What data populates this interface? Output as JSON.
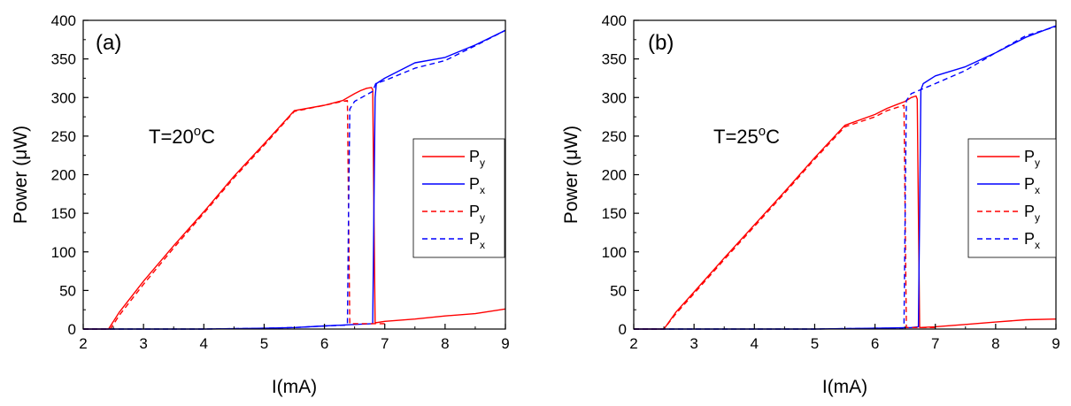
{
  "chart_data": [
    {
      "type": "line",
      "panel_label": "(a)",
      "annotation": {
        "text": "T=20",
        "sup": "o",
        "unit": "C"
      },
      "xlabel": "I(mA)",
      "ylabel": "Power (μW)",
      "xlim": [
        2,
        9
      ],
      "ylim": [
        0,
        400
      ],
      "xticks": [
        "2",
        "3",
        "4",
        "5",
        "6",
        "7",
        "8",
        "9"
      ],
      "yticks": [
        "0",
        "50",
        "100",
        "150",
        "200",
        "250",
        "300",
        "350",
        "400"
      ],
      "legend_position": "right-center",
      "series": [
        {
          "name": "P",
          "sub": "y",
          "color": "#ff0000",
          "style": "solid",
          "x": [
            2.0,
            2.42,
            2.6,
            3.0,
            3.5,
            4.0,
            4.5,
            5.0,
            5.5,
            6.0,
            6.3,
            6.5,
            6.6,
            6.7,
            6.78,
            6.8,
            6.82,
            6.84,
            7.0,
            7.5,
            8.0,
            8.5,
            9.0
          ],
          "y": [
            0,
            0,
            22,
            62,
            108,
            152,
            198,
            240,
            283,
            290,
            296,
            305,
            309,
            312,
            313,
            310,
            160,
            8,
            10,
            13,
            17,
            20,
            26
          ]
        },
        {
          "name": "P",
          "sub": "x",
          "color": "#0000ff",
          "style": "solid",
          "x": [
            2.0,
            4.0,
            5.0,
            5.5,
            6.0,
            6.5,
            6.8,
            6.82,
            6.84,
            6.86,
            7.0,
            7.5,
            8.0,
            8.5,
            9.0
          ],
          "y": [
            0,
            0,
            1,
            2,
            4,
            6,
            7,
            150,
            300,
            318,
            325,
            345,
            352,
            368,
            387
          ]
        },
        {
          "name": "P",
          "sub": "y",
          "color": "#ff0000",
          "style": "dashed",
          "x": [
            2.0,
            2.45,
            2.6,
            3.0,
            3.5,
            4.0,
            4.5,
            5.0,
            5.5,
            6.0,
            6.3,
            6.38,
            6.4,
            6.42,
            6.5,
            7.0
          ],
          "y": [
            0,
            0,
            18,
            58,
            105,
            150,
            196,
            238,
            282,
            290,
            295,
            296,
            150,
            7,
            7,
            7
          ]
        },
        {
          "name": "P",
          "sub": "x",
          "color": "#0000ff",
          "style": "dashed",
          "x": [
            2.0,
            4.0,
            5.0,
            5.5,
            6.0,
            6.35,
            6.38,
            6.4,
            6.42,
            6.5,
            6.8,
            6.85,
            7.0,
            7.5,
            8.0,
            8.5,
            9.0
          ],
          "y": [
            0,
            0,
            1,
            2,
            4,
            5,
            6,
            150,
            285,
            295,
            308,
            318,
            322,
            338,
            348,
            367,
            387
          ]
        }
      ]
    },
    {
      "type": "line",
      "panel_label": "(b)",
      "annotation": {
        "text": "T=25",
        "sup": "o",
        "unit": "C"
      },
      "xlabel": "I(mA)",
      "ylabel": "Power (μW)",
      "xlim": [
        2,
        9
      ],
      "ylim": [
        0,
        400
      ],
      "xticks": [
        "2",
        "3",
        "4",
        "5",
        "6",
        "7",
        "8",
        "9"
      ],
      "yticks": [
        "0",
        "50",
        "100",
        "150",
        "200",
        "250",
        "300",
        "350",
        "400"
      ],
      "legend_position": "right-center",
      "series": [
        {
          "name": "P",
          "sub": "y",
          "color": "#ff0000",
          "style": "solid",
          "x": [
            2.0,
            2.5,
            2.7,
            3.0,
            3.5,
            4.0,
            4.5,
            5.0,
            5.5,
            6.0,
            6.2,
            6.4,
            6.5,
            6.6,
            6.68,
            6.7,
            6.72,
            6.74,
            7.0,
            7.5,
            8.0,
            8.5,
            9.0
          ],
          "y": [
            0,
            0,
            22,
            48,
            92,
            135,
            178,
            222,
            264,
            278,
            286,
            292,
            295,
            300,
            302,
            298,
            150,
            2,
            3,
            6,
            9,
            12,
            13
          ]
        },
        {
          "name": "P",
          "sub": "x",
          "color": "#0000ff",
          "style": "solid",
          "x": [
            2.0,
            5.0,
            6.0,
            6.6,
            6.72,
            6.74,
            6.76,
            6.8,
            7.0,
            7.5,
            8.0,
            8.5,
            9.0
          ],
          "y": [
            0,
            0,
            1,
            2,
            3,
            150,
            310,
            318,
            328,
            340,
            358,
            378,
            393
          ]
        },
        {
          "name": "P",
          "sub": "y",
          "color": "#ff0000",
          "style": "dashed",
          "x": [
            2.0,
            2.5,
            2.7,
            3.0,
            3.5,
            4.0,
            4.5,
            5.0,
            5.5,
            6.0,
            6.2,
            6.4,
            6.48,
            6.5,
            6.52,
            6.6,
            7.0
          ],
          "y": [
            0,
            0,
            20,
            46,
            90,
            133,
            176,
            220,
            262,
            275,
            283,
            288,
            290,
            150,
            2,
            2,
            2
          ]
        },
        {
          "name": "P",
          "sub": "x",
          "color": "#0000ff",
          "style": "dashed",
          "x": [
            2.0,
            5.0,
            6.0,
            6.45,
            6.48,
            6.5,
            6.52,
            6.6,
            7.0,
            7.5,
            8.0,
            8.5,
            9.0
          ],
          "y": [
            0,
            0,
            1,
            1,
            2,
            150,
            296,
            305,
            318,
            335,
            358,
            380,
            392
          ]
        }
      ]
    }
  ]
}
